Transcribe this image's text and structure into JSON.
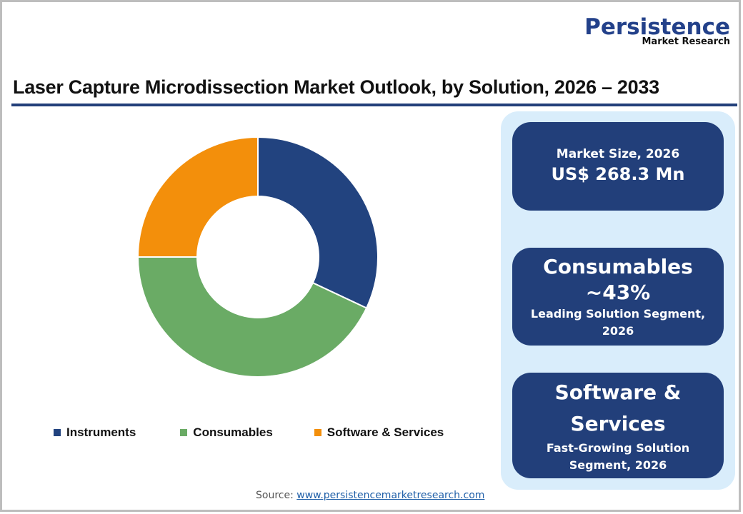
{
  "logo": {
    "main": "Persistence",
    "sub": "Market Research"
  },
  "title": "Laser Capture Microdissection Market Outlook, by Solution, 2026 – 2033",
  "legend": [
    {
      "label": "Instruments",
      "color": "#22437f"
    },
    {
      "label": "Consumables",
      "color": "#6aab65"
    },
    {
      "label": "Software & Services",
      "color": "#f38f0b"
    }
  ],
  "cards": {
    "market_size": {
      "label": "Market Size, 2026",
      "value": "US$ 268.3 Mn"
    },
    "leading": {
      "name": "Consumables",
      "share": "~43%",
      "caption": "Leading Solution Segment, 2026"
    },
    "fastest": {
      "name": "Software & Services",
      "caption": "Fast-Growing Solution Segment, 2026"
    }
  },
  "source": {
    "label": "Source:",
    "link": "www.persistencemarketresearch.com"
  },
  "chart_data": {
    "type": "pie",
    "variant": "donut",
    "title": "Laser Capture Microdissection Market Outlook, by Solution, 2026 – 2033",
    "categories": [
      "Instruments",
      "Consumables",
      "Software & Services"
    ],
    "values": [
      32,
      43,
      25
    ],
    "unit": "%",
    "colors": [
      "#22437f",
      "#6aab65",
      "#f38f0b"
    ],
    "start_angle_deg": 0,
    "direction": "clockwise",
    "legend_position": "bottom"
  }
}
